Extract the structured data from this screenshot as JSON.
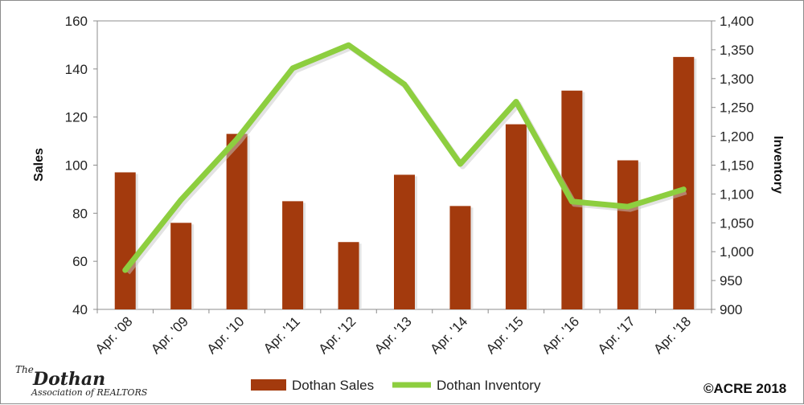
{
  "chart_data": {
    "type": "bar",
    "categories": [
      "Apr. '08",
      "Apr. '09",
      "Apr. '10",
      "Apr. '11",
      "Apr. '12",
      "Apr. '13",
      "Apr. '14",
      "Apr. '15",
      "Apr. '16",
      "Apr. '17",
      "Apr. '18"
    ],
    "series": [
      {
        "name": "Dothan Sales",
        "type": "bar",
        "axis": "left",
        "color": "#a33a0d",
        "values": [
          97,
          76,
          113,
          85,
          68,
          96,
          83,
          117,
          131,
          102,
          145
        ]
      },
      {
        "name": "Dothan Inventory",
        "type": "line",
        "axis": "right",
        "color": "#8dce3f",
        "values": [
          968,
          1090,
          1195,
          1318,
          1358,
          1290,
          1152,
          1260,
          1087,
          1078,
          1108
        ]
      }
    ],
    "ylabel": "Sales",
    "y2label": "Inventory",
    "ylim": [
      40,
      160
    ],
    "y2lim": [
      900,
      1400
    ],
    "yticks": [
      "40",
      "60",
      "80",
      "100",
      "120",
      "140",
      "160"
    ],
    "y2ticks": [
      "900",
      "950",
      "1,000",
      "1,050",
      "1,100",
      "1,150",
      "1,200",
      "1,250",
      "1,300",
      "1,350",
      "1,400"
    ],
    "grid": false,
    "legend_position": "bottom"
  },
  "logo": {
    "line1": "The",
    "line2": "Dothan",
    "line3": "Association of REALTORS"
  },
  "copyright": "©ACRE 2018"
}
